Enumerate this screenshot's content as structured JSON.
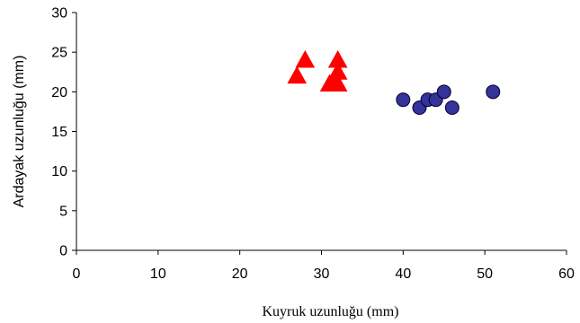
{
  "chart_data": {
    "type": "scatter",
    "xlabel": "Kuyruk uzunluğu (mm)",
    "ylabel": "Ardayak uzunluğu (mm)",
    "xlim": [
      0,
      60
    ],
    "ylim": [
      0,
      30
    ],
    "xticks": [
      0,
      10,
      20,
      30,
      40,
      50,
      60
    ],
    "yticks": [
      0,
      5,
      10,
      15,
      20,
      25,
      30
    ],
    "grid": false,
    "legend": "none",
    "series": [
      {
        "marker": "triangle",
        "color": "#ff0000",
        "points": [
          [
            27,
            22
          ],
          [
            28,
            24
          ],
          [
            31,
            21
          ],
          [
            31.5,
            21
          ],
          [
            32,
            21
          ],
          [
            32,
            22.5
          ],
          [
            32,
            24
          ]
        ]
      },
      {
        "marker": "circle",
        "color": "#333399",
        "points": [
          [
            40,
            19
          ],
          [
            42,
            18
          ],
          [
            43,
            19
          ],
          [
            44,
            19
          ],
          [
            45,
            20
          ],
          [
            46,
            18
          ],
          [
            51,
            20
          ]
        ]
      }
    ]
  }
}
